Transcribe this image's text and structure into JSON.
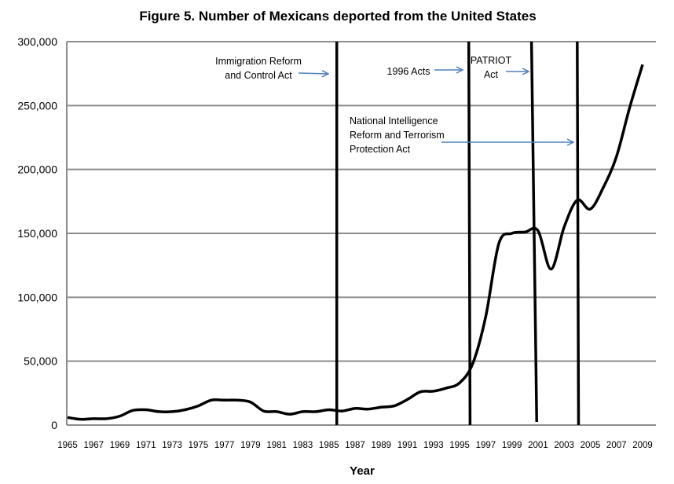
{
  "chart_data": {
    "type": "line",
    "title": "Figure 5.  Number of Mexicans deported from the United States",
    "xlabel": "Year",
    "ylabel": "",
    "ylim": [
      0,
      300000
    ],
    "xlim": [
      1965,
      2009
    ],
    "grid": true,
    "y_ticks": [
      "0",
      "50,000",
      "100,000",
      "150,000",
      "200,000",
      "250,000",
      "300,000"
    ],
    "x_ticks": [
      "1965",
      "1967",
      "1969",
      "1971",
      "1973",
      "1975",
      "1977",
      "1979",
      "1981",
      "1983",
      "1985",
      "1987",
      "1989",
      "1991",
      "1993",
      "1995",
      "1997",
      "1999",
      "2001",
      "2003",
      "2005",
      "2007",
      "2009"
    ],
    "x": [
      1965,
      1966,
      1967,
      1968,
      1969,
      1970,
      1971,
      1972,
      1973,
      1974,
      1975,
      1976,
      1977,
      1978,
      1979,
      1980,
      1981,
      1982,
      1983,
      1984,
      1985,
      1986,
      1987,
      1988,
      1989,
      1990,
      1991,
      1992,
      1993,
      1994,
      1995,
      1996,
      1997,
      1998,
      1999,
      2000,
      2001,
      2002,
      2003,
      2004,
      2005,
      2006,
      2007,
      2008,
      2009
    ],
    "series": [
      {
        "values": [
          6000,
          4500,
          5000,
          5000,
          7000,
          11500,
          12000,
          10500,
          10500,
          12000,
          15000,
          19500,
          19500,
          19500,
          18000,
          11000,
          10500,
          8500,
          10500,
          10500,
          12000,
          11000,
          13000,
          12500,
          14000,
          15000,
          20000,
          26000,
          26500,
          29000,
          33000,
          48000,
          85000,
          142000,
          150000,
          151000,
          152000,
          122000,
          155000,
          176000,
          169000,
          186000,
          210000,
          248000,
          282000
        ],
        "color": "#000000"
      }
    ],
    "event_lines": [
      {
        "year_top": 1985.6,
        "year_bottom": 1985.6,
        "label": [
          "Immigration Reform",
          "and Control Act"
        ]
      },
      {
        "year_top": 1995.7,
        "year_bottom": 1995.8,
        "label": [
          "1996 Acts"
        ]
      },
      {
        "year_top": 2000.5,
        "year_bottom": 2000.9,
        "label": [
          "PATRIOT",
          "Act"
        ]
      },
      {
        "year_top": 2004.0,
        "year_bottom": 2004.1,
        "label": [
          "National Intelligence",
          "Reform and Terrorism",
          "Protection Act"
        ]
      }
    ],
    "colors": {
      "line": "#000000",
      "grid": "#8c8c8c",
      "arrow": "#4f81bd"
    }
  }
}
